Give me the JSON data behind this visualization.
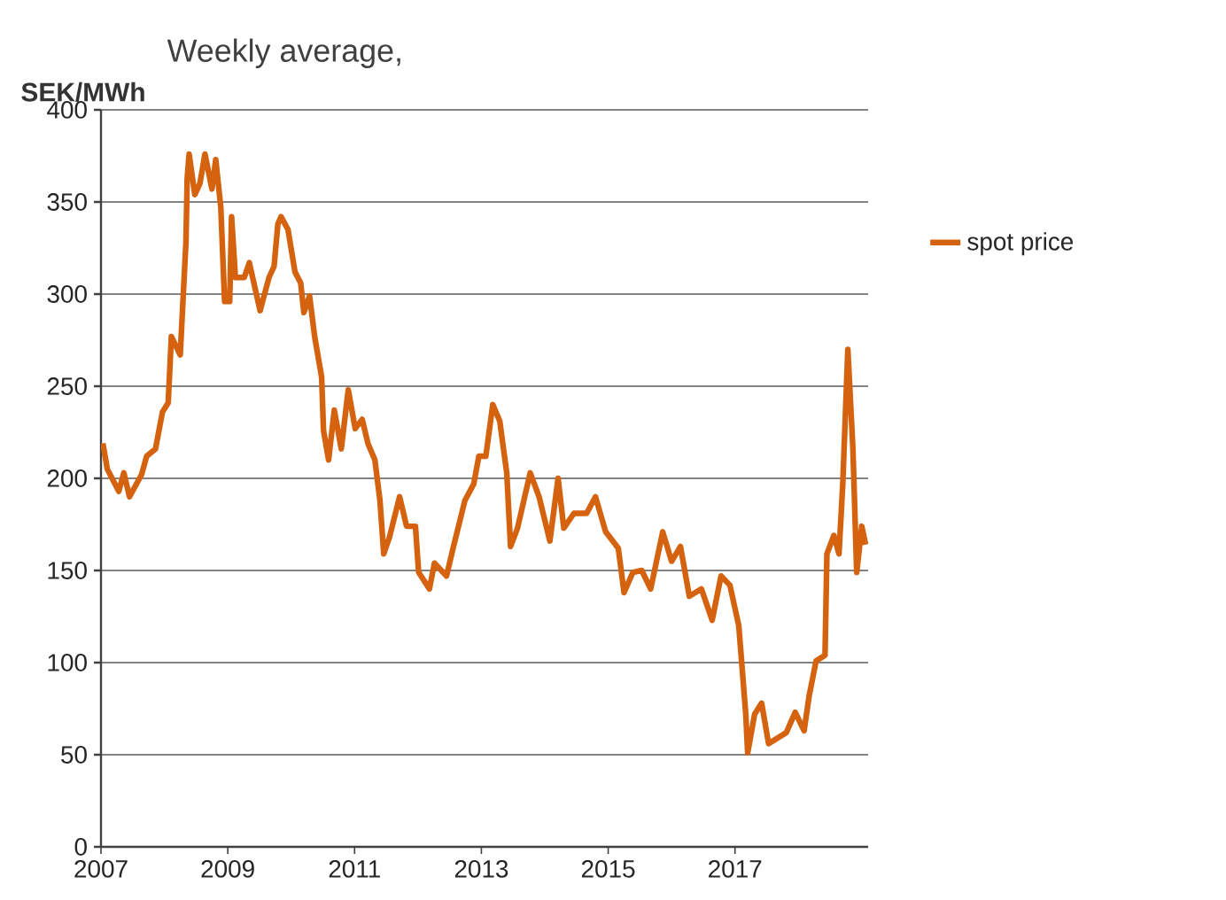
{
  "chart_data": {
    "type": "line",
    "subtitle": "Weekly average,",
    "ylabel": "SEK/MWh",
    "xlim": [
      2007,
      2019.1
    ],
    "xticks": [
      2007,
      2009,
      2011,
      2013,
      2015,
      2017
    ],
    "ylim": [
      0,
      400
    ],
    "yticks": [
      0,
      50,
      100,
      150,
      200,
      250,
      300,
      350,
      400
    ],
    "grid": "y",
    "legend": "right",
    "marker": "none",
    "line_style": "solid",
    "series": [
      {
        "name": "spot price",
        "color": "#d4620e",
        "x": [
          2007.03,
          2007.1,
          2007.28,
          2007.36,
          2007.45,
          2007.64,
          2007.72,
          2007.86,
          2007.97,
          2008.06,
          2008.11,
          2008.25,
          2008.34,
          2008.36,
          2008.39,
          2008.48,
          2008.56,
          2008.64,
          2008.75,
          2008.81,
          2008.89,
          2008.95,
          2009.03,
          2009.06,
          2009.12,
          2009.26,
          2009.34,
          2009.51,
          2009.65,
          2009.73,
          2009.79,
          2009.84,
          2009.95,
          2010.06,
          2010.15,
          2010.2,
          2010.29,
          2010.37,
          2010.48,
          2010.51,
          2010.59,
          2010.68,
          2010.79,
          2010.9,
          2011.01,
          2011.12,
          2011.21,
          2011.32,
          2011.4,
          2011.46,
          2011.55,
          2011.71,
          2011.82,
          2011.96,
          2012.01,
          2012.18,
          2012.26,
          2012.45,
          2012.56,
          2012.74,
          2012.88,
          2012.96,
          2013.07,
          2013.18,
          2013.29,
          2013.4,
          2013.46,
          2013.57,
          2013.77,
          2013.91,
          2014.08,
          2014.21,
          2014.3,
          2014.46,
          2014.66,
          2014.8,
          2014.96,
          2015.16,
          2015.25,
          2015.39,
          2015.53,
          2015.67,
          2015.86,
          2016.0,
          2016.14,
          2016.28,
          2016.47,
          2016.64,
          2016.78,
          2016.92,
          2017.06,
          2017.17,
          2017.2,
          2017.31,
          2017.42,
          2017.53,
          2017.67,
          2017.81,
          2017.95,
          2018.09,
          2018.17,
          2018.28,
          2018.42,
          2018.45,
          2018.56,
          2018.64,
          2018.7,
          2018.78,
          2018.86,
          2018.92,
          2019.0,
          2019.06
        ],
        "values": [
          219,
          205,
          193,
          203,
          190,
          202,
          212,
          216,
          236,
          241,
          277,
          267,
          328,
          363,
          376,
          354,
          360,
          376,
          357,
          373,
          347,
          296,
          296,
          342,
          309,
          309,
          317,
          291,
          309,
          315,
          338,
          342,
          335,
          312,
          306,
          290,
          299,
          277,
          255,
          226,
          210,
          237,
          216,
          248,
          227,
          232,
          219,
          210,
          188,
          159,
          168,
          190,
          174,
          174,
          149,
          140,
          154,
          147,
          163,
          188,
          197,
          212,
          212,
          240,
          231,
          203,
          163,
          173,
          203,
          190,
          166,
          200,
          173,
          181,
          181,
          190,
          171,
          162,
          138,
          149,
          150,
          140,
          171,
          155,
          163,
          136,
          140,
          123,
          147,
          142,
          120,
          72,
          51,
          72,
          78,
          56,
          59,
          62,
          73,
          63,
          82,
          101,
          104,
          159,
          169,
          159,
          197,
          270,
          216,
          149,
          174,
          164
        ]
      }
    ]
  }
}
